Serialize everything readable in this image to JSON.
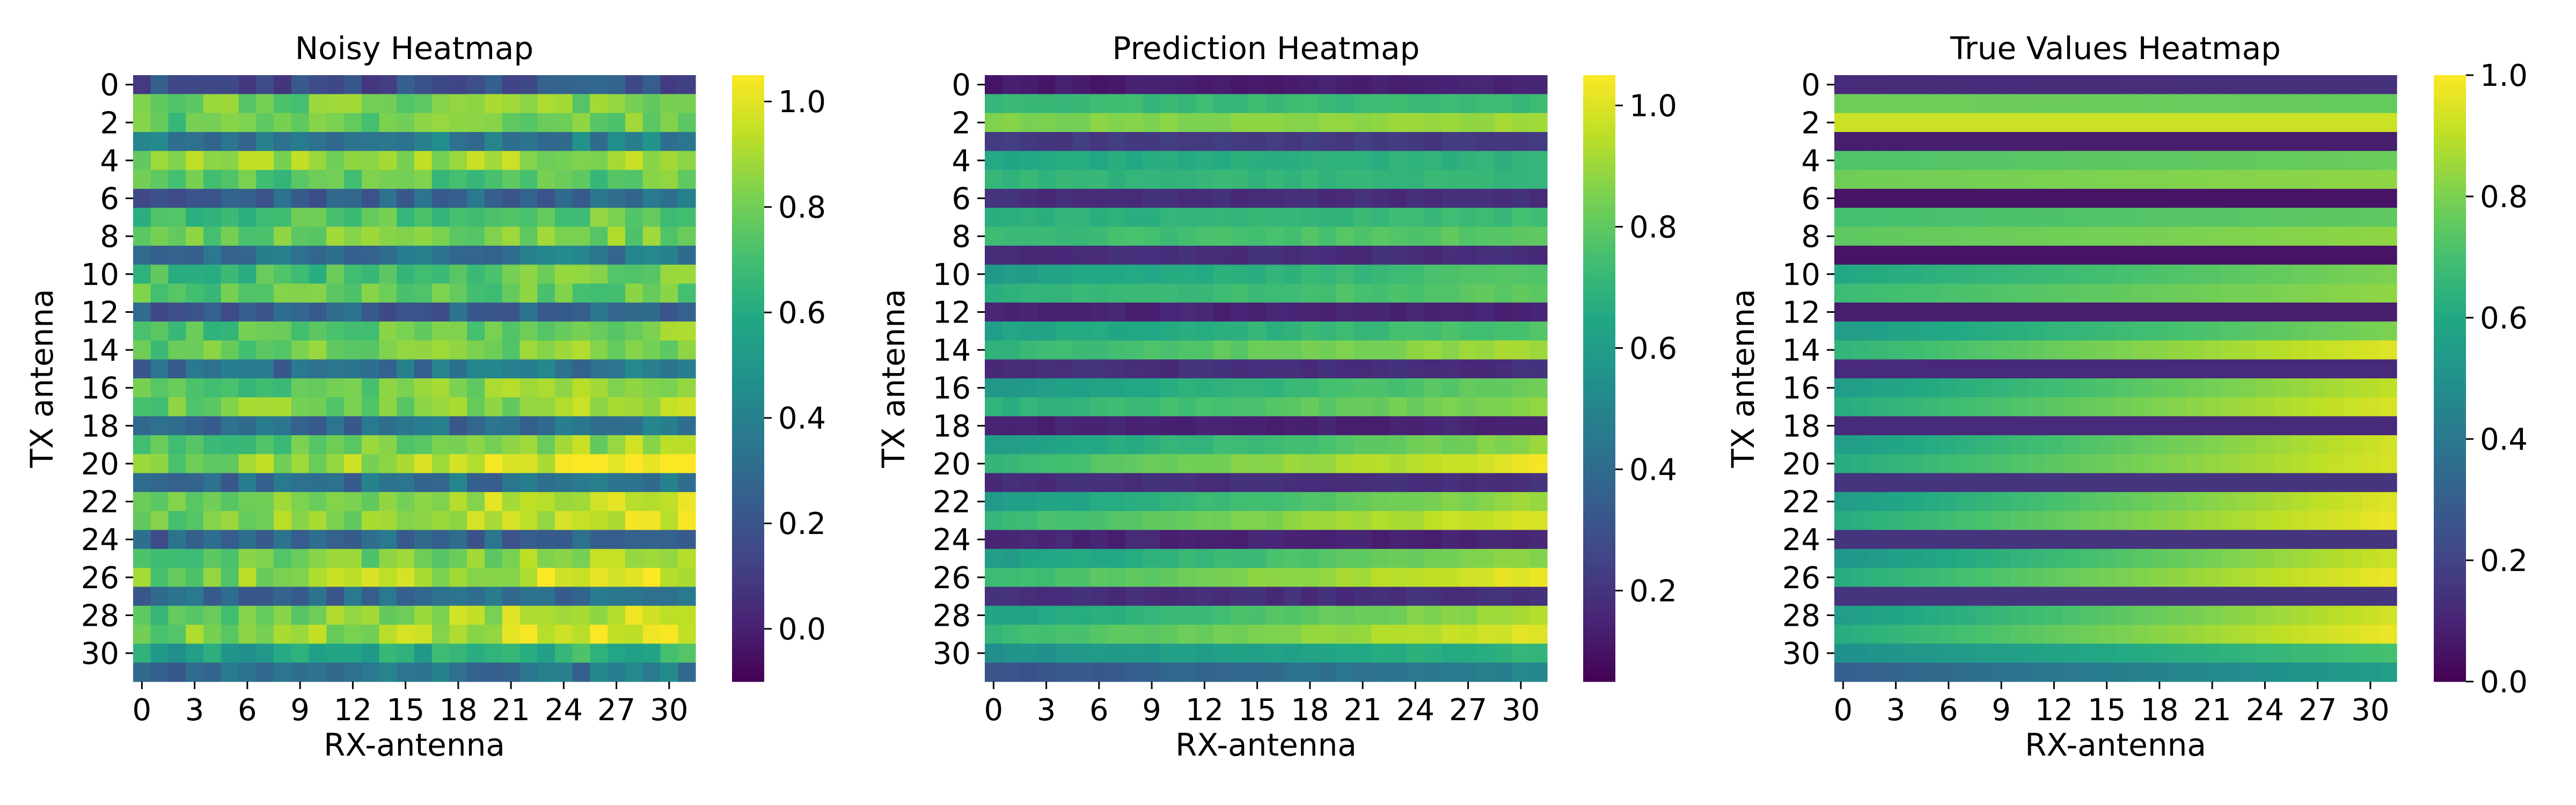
{
  "chart_data": [
    {
      "type": "heatmap",
      "title": "Noisy Heatmap",
      "xlabel": "RX-antenna",
      "ylabel": "TX antenna",
      "rows": 32,
      "cols": 32,
      "x_ticks": [
        "0",
        "3",
        "6",
        "9",
        "12",
        "15",
        "18",
        "21",
        "24",
        "27",
        "30"
      ],
      "x_tick_index": [
        0,
        3,
        6,
        9,
        12,
        15,
        18,
        21,
        24,
        27,
        30
      ],
      "y_ticks": [
        "0",
        "2",
        "4",
        "6",
        "8",
        "10",
        "12",
        "14",
        "16",
        "18",
        "20",
        "22",
        "24",
        "26",
        "28",
        "30"
      ],
      "y_tick_index": [
        0,
        2,
        4,
        6,
        8,
        10,
        12,
        14,
        16,
        18,
        20,
        22,
        24,
        26,
        28,
        30
      ],
      "colorscale": "viridis",
      "vmin": -0.1,
      "vmax": 1.05,
      "colorbar_ticks": [
        "0.0",
        "0.2",
        "0.4",
        "0.6",
        "0.8",
        "1.0"
      ],
      "colorbar_tick_values": [
        0.0,
        0.2,
        0.4,
        0.6,
        0.8,
        1.0
      ],
      "row_levels": [
        0.15,
        0.78,
        0.75,
        0.35,
        0.85,
        0.72,
        0.25,
        0.7,
        0.78,
        0.32,
        0.68,
        0.75,
        0.22,
        0.7,
        0.75,
        0.3,
        0.72,
        0.78,
        0.28,
        0.7,
        0.8,
        0.3,
        0.75,
        0.78,
        0.25,
        0.72,
        0.8,
        0.28,
        0.75,
        0.8,
        0.55,
        0.3
      ],
      "row_ramp": [
        0.05,
        0.05,
        0.05,
        0.05,
        0.05,
        0.05,
        0.05,
        0.08,
        0.05,
        0.05,
        0.12,
        0.05,
        0.05,
        0.15,
        0.1,
        0.05,
        0.18,
        0.12,
        0.05,
        0.2,
        0.25,
        0.05,
        0.25,
        0.2,
        0.05,
        0.2,
        0.2,
        0.05,
        0.22,
        0.22,
        0.1,
        0.05
      ],
      "noise": 0.1
    },
    {
      "type": "heatmap",
      "title": "Prediction Heatmap",
      "xlabel": "RX-antenna",
      "ylabel": "TX antenna",
      "rows": 32,
      "cols": 32,
      "x_ticks": [
        "0",
        "3",
        "6",
        "9",
        "12",
        "15",
        "18",
        "21",
        "24",
        "27",
        "30"
      ],
      "x_tick_index": [
        0,
        3,
        6,
        9,
        12,
        15,
        18,
        21,
        24,
        27,
        30
      ],
      "y_ticks": [
        "0",
        "2",
        "4",
        "6",
        "8",
        "10",
        "12",
        "14",
        "16",
        "18",
        "20",
        "22",
        "24",
        "26",
        "28",
        "30"
      ],
      "y_tick_index": [
        0,
        2,
        4,
        6,
        8,
        10,
        12,
        14,
        16,
        18,
        20,
        22,
        24,
        26,
        28,
        30
      ],
      "colorscale": "viridis",
      "vmin": 0.05,
      "vmax": 1.05,
      "colorbar_ticks": [
        "0.2",
        "0.4",
        "0.6",
        "0.8",
        "1.0"
      ],
      "colorbar_tick_values": [
        0.2,
        0.4,
        0.6,
        0.8,
        1.0
      ],
      "row_levels": [
        0.12,
        0.72,
        0.85,
        0.22,
        0.65,
        0.7,
        0.18,
        0.68,
        0.72,
        0.18,
        0.6,
        0.68,
        0.15,
        0.62,
        0.7,
        0.18,
        0.58,
        0.68,
        0.15,
        0.6,
        0.72,
        0.18,
        0.6,
        0.72,
        0.15,
        0.6,
        0.72,
        0.18,
        0.62,
        0.72,
        0.55,
        0.3
      ],
      "row_ramp": [
        0.02,
        0.0,
        0.05,
        0.0,
        0.05,
        0.02,
        0.0,
        0.05,
        0.08,
        0.0,
        0.18,
        0.12,
        0.0,
        0.15,
        0.22,
        0.0,
        0.25,
        0.2,
        0.0,
        0.28,
        0.3,
        0.0,
        0.3,
        0.28,
        0.0,
        0.28,
        0.3,
        0.0,
        0.3,
        0.28,
        0.15,
        0.2
      ],
      "noise": 0.02
    },
    {
      "type": "heatmap",
      "title": "True Values Heatmap",
      "xlabel": "RX-antenna",
      "ylabel": "TX antenna",
      "rows": 32,
      "cols": 32,
      "x_ticks": [
        "0",
        "3",
        "6",
        "9",
        "12",
        "15",
        "18",
        "21",
        "24",
        "27",
        "30"
      ],
      "x_tick_index": [
        0,
        3,
        6,
        9,
        12,
        15,
        18,
        21,
        24,
        27,
        30
      ],
      "y_ticks": [
        "0",
        "2",
        "4",
        "6",
        "8",
        "10",
        "12",
        "14",
        "16",
        "18",
        "20",
        "22",
        "24",
        "26",
        "28",
        "30"
      ],
      "y_tick_index": [
        0,
        2,
        4,
        6,
        8,
        10,
        12,
        14,
        16,
        18,
        20,
        22,
        24,
        26,
        28,
        30
      ],
      "colorscale": "viridis",
      "vmin": 0.0,
      "vmax": 1.0,
      "colorbar_ticks": [
        "0.0",
        "0.2",
        "0.4",
        "0.6",
        "0.8",
        "1.0"
      ],
      "colorbar_tick_values": [
        0.0,
        0.2,
        0.4,
        0.6,
        0.8,
        1.0
      ],
      "row_levels": [
        0.12,
        0.78,
        0.92,
        0.08,
        0.72,
        0.78,
        0.05,
        0.7,
        0.75,
        0.05,
        0.6,
        0.68,
        0.08,
        0.55,
        0.65,
        0.12,
        0.55,
        0.62,
        0.12,
        0.55,
        0.62,
        0.15,
        0.55,
        0.62,
        0.15,
        0.52,
        0.62,
        0.15,
        0.55,
        0.62,
        0.5,
        0.3
      ],
      "row_ramp": [
        0.02,
        -0.02,
        0.0,
        0.0,
        0.05,
        0.05,
        0.0,
        0.05,
        0.08,
        0.0,
        0.2,
        0.15,
        0.0,
        0.25,
        0.3,
        0.0,
        0.35,
        0.32,
        0.0,
        0.38,
        0.32,
        0.0,
        0.4,
        0.35,
        0.0,
        0.4,
        0.35,
        0.0,
        0.38,
        0.35,
        0.2,
        0.25
      ],
      "noise": 0.0
    }
  ]
}
